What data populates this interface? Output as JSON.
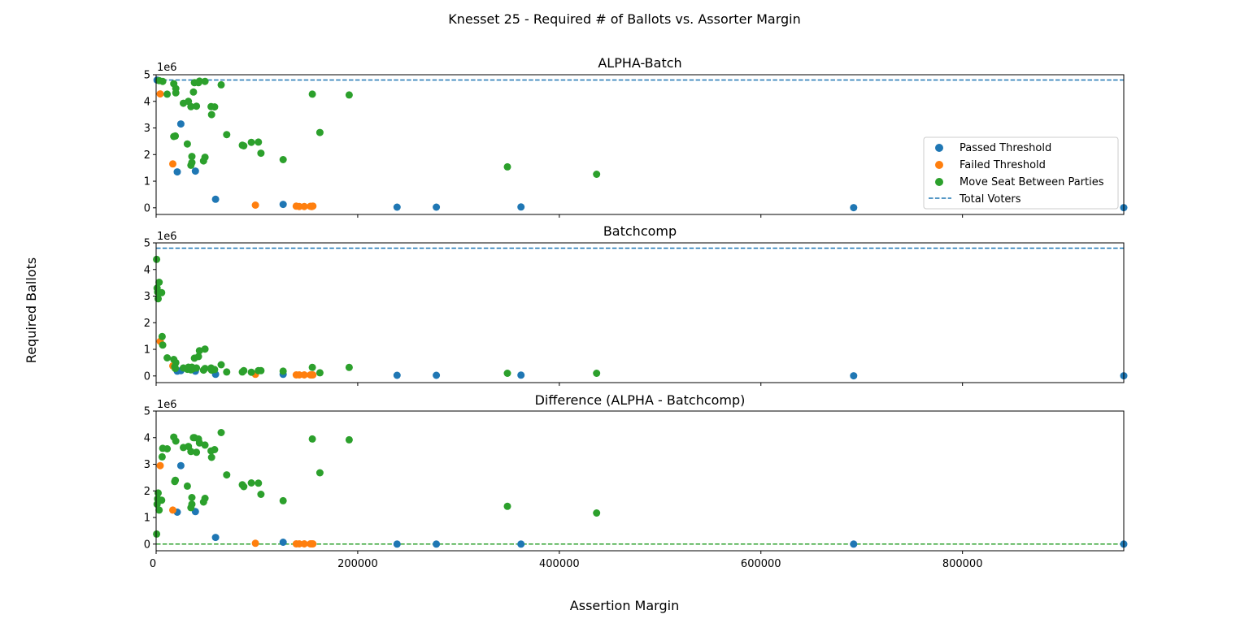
{
  "figure": {
    "suptitle": "Knesset 25 - Required # of Ballots vs. Assorter Margin",
    "xlabel": "Assertion Margin",
    "ylabel": "Required Ballots",
    "offset_label": "1e6"
  },
  "colors": {
    "passed": "#1f77b4",
    "failed": "#ff7f0e",
    "move": "#2ca02c",
    "total_line": "#1f77b4",
    "zero_line": "#2ca02c"
  },
  "legend": {
    "location": "center-right",
    "entries": [
      "Passed Threshold",
      "Failed Threshold",
      "Move Seat Between Parties",
      "Total Voters"
    ]
  },
  "chart_data": [
    {
      "type": "scatter",
      "title": "ALPHA-Batch",
      "xlim": [
        0,
        960000
      ],
      "ylim": [
        -250000,
        5000000
      ],
      "y_ticks": [
        "0",
        "1",
        "2",
        "3",
        "4",
        "5"
      ],
      "x_tick_values": [
        0,
        200000,
        400000,
        600000,
        800000
      ],
      "show_x_tick_labels": false,
      "reference_line": {
        "name": "Total Voters",
        "y": 4800000,
        "style": "dashed"
      },
      "series": [
        {
          "name": "Passed Threshold",
          "points": [
            [
              1000,
              4800000
            ],
            [
              21000,
              1350000
            ],
            [
              24500,
              3150000
            ],
            [
              39000,
              1380000
            ],
            [
              59000,
              320000
            ],
            [
              126000,
              130000
            ],
            [
              239000,
              25000
            ],
            [
              278000,
              25000
            ],
            [
              362000,
              30000
            ],
            [
              692000,
              5000
            ],
            [
              960000,
              5000
            ]
          ]
        },
        {
          "name": "Failed Threshold",
          "points": [
            [
              4000,
              4280000
            ],
            [
              16500,
              1650000
            ],
            [
              98500,
              100000
            ],
            [
              139000,
              60000
            ],
            [
              142000,
              50000
            ],
            [
              147000,
              50000
            ],
            [
              153000,
              55000
            ],
            [
              154500,
              50000
            ],
            [
              155500,
              65000
            ]
          ]
        },
        {
          "name": "Move Seat Between Parties",
          "points": [
            [
              3000,
              4780000
            ],
            [
              6500,
              4750000
            ],
            [
              11000,
              4270000
            ],
            [
              17500,
              4660000
            ],
            [
              19500,
              4320000
            ],
            [
              19500,
              4480000
            ],
            [
              17500,
              2680000
            ],
            [
              19000,
              2700000
            ],
            [
              27000,
              3930000
            ],
            [
              31000,
              2400000
            ],
            [
              32000,
              4000000
            ],
            [
              34500,
              1600000
            ],
            [
              35500,
              1930000
            ],
            [
              35500,
              1700000
            ],
            [
              34500,
              3800000
            ],
            [
              37000,
              4350000
            ],
            [
              38000,
              4700000
            ],
            [
              40000,
              3820000
            ],
            [
              42000,
              4700000
            ],
            [
              43000,
              4760000
            ],
            [
              47000,
              1760000
            ],
            [
              48500,
              1900000
            ],
            [
              48500,
              4750000
            ],
            [
              54500,
              3800000
            ],
            [
              55000,
              3500000
            ],
            [
              58000,
              3790000
            ],
            [
              64500,
              4620000
            ],
            [
              70000,
              2750000
            ],
            [
              85500,
              2350000
            ],
            [
              87000,
              2330000
            ],
            [
              94500,
              2460000
            ],
            [
              101500,
              2470000
            ],
            [
              104000,
              2050000
            ],
            [
              126000,
              1810000
            ],
            [
              155000,
              4270000
            ],
            [
              162500,
              2830000
            ],
            [
              191500,
              4240000
            ],
            [
              348500,
              1540000
            ],
            [
              437000,
              1260000
            ]
          ]
        }
      ]
    },
    {
      "type": "scatter",
      "title": "Batchcomp",
      "xlim": [
        0,
        960000
      ],
      "ylim": [
        -250000,
        5000000
      ],
      "y_ticks": [
        "0",
        "1",
        "2",
        "3",
        "4",
        "5"
      ],
      "x_tick_values": [
        0,
        200000,
        400000,
        600000,
        800000
      ],
      "show_x_tick_labels": false,
      "reference_line": {
        "name": "Total Voters",
        "y": 4800000,
        "style": "dashed"
      },
      "series": [
        {
          "name": "Passed Threshold",
          "points": [
            [
              21000,
              180000
            ],
            [
              24500,
              200000
            ],
            [
              39000,
              180000
            ],
            [
              59000,
              60000
            ],
            [
              126000,
              60000
            ],
            [
              239000,
              25000
            ],
            [
              278000,
              25000
            ],
            [
              362000,
              30000
            ],
            [
              692000,
              5000
            ],
            [
              960000,
              5000
            ]
          ]
        },
        {
          "name": "Failed Threshold",
          "points": [
            [
              4000,
              1300000
            ],
            [
              16500,
              380000
            ],
            [
              98500,
              60000
            ],
            [
              139000,
              40000
            ],
            [
              142000,
              40000
            ],
            [
              147000,
              40000
            ],
            [
              153000,
              40000
            ],
            [
              154500,
              40000
            ],
            [
              155500,
              40000
            ]
          ]
        },
        {
          "name": "Move Seat Between Parties",
          "points": [
            [
              500,
              4380000
            ],
            [
              1000,
              3300000
            ],
            [
              1500,
              3150000
            ],
            [
              2000,
              2900000
            ],
            [
              3000,
              3520000
            ],
            [
              5500,
              3130000
            ],
            [
              6000,
              1480000
            ],
            [
              6500,
              1160000
            ],
            [
              11000,
              680000
            ],
            [
              17500,
              620000
            ],
            [
              19500,
              500000
            ],
            [
              18500,
              350000
            ],
            [
              19000,
              280000
            ],
            [
              27000,
              300000
            ],
            [
              31000,
              250000
            ],
            [
              32000,
              330000
            ],
            [
              34500,
              230000
            ],
            [
              35500,
              330000
            ],
            [
              37000,
              280000
            ],
            [
              38000,
              670000
            ],
            [
              40000,
              300000
            ],
            [
              42000,
              730000
            ],
            [
              43000,
              950000
            ],
            [
              47000,
              220000
            ],
            [
              48500,
              1010000
            ],
            [
              48500,
              280000
            ],
            [
              54500,
              300000
            ],
            [
              55000,
              220000
            ],
            [
              58000,
              240000
            ],
            [
              64500,
              420000
            ],
            [
              70000,
              150000
            ],
            [
              85500,
              150000
            ],
            [
              87000,
              200000
            ],
            [
              94500,
              140000
            ],
            [
              101500,
              200000
            ],
            [
              104000,
              200000
            ],
            [
              126000,
              180000
            ],
            [
              155000,
              320000
            ],
            [
              162500,
              120000
            ],
            [
              191500,
              320000
            ],
            [
              348500,
              100000
            ],
            [
              437000,
              100000
            ]
          ]
        }
      ]
    },
    {
      "type": "scatter",
      "title": "Difference (ALPHA - Batchcomp)",
      "xlim": [
        0,
        960000
      ],
      "ylim": [
        -250000,
        5000000
      ],
      "y_ticks": [
        "0",
        "1",
        "2",
        "3",
        "4",
        "5"
      ],
      "x_tick_values": [
        0,
        200000,
        400000,
        600000,
        800000
      ],
      "x_tick_labels": [
        "0",
        "200000",
        "400000",
        "600000",
        "800000"
      ],
      "show_x_tick_labels": true,
      "reference_line": {
        "name": "zero",
        "y": 0,
        "style": "dashed"
      },
      "series": [
        {
          "name": "Passed Threshold",
          "points": [
            [
              21000,
              1200000
            ],
            [
              24500,
              2950000
            ],
            [
              39000,
              1220000
            ],
            [
              59000,
              250000
            ],
            [
              126000,
              70000
            ],
            [
              239000,
              0
            ],
            [
              278000,
              0
            ],
            [
              362000,
              0
            ],
            [
              692000,
              0
            ],
            [
              960000,
              0
            ]
          ]
        },
        {
          "name": "Failed Threshold",
          "points": [
            [
              4000,
              2950000
            ],
            [
              16500,
              1280000
            ],
            [
              98500,
              30000
            ],
            [
              139000,
              10000
            ],
            [
              142000,
              10000
            ],
            [
              147000,
              10000
            ],
            [
              153000,
              10000
            ],
            [
              154500,
              10000
            ],
            [
              155500,
              10000
            ]
          ]
        },
        {
          "name": "Move Seat Between Parties",
          "points": [
            [
              500,
              380000
            ],
            [
              1000,
              1500000
            ],
            [
              1500,
              1700000
            ],
            [
              2000,
              1920000
            ],
            [
              3000,
              1280000
            ],
            [
              5500,
              1650000
            ],
            [
              6000,
              3280000
            ],
            [
              6500,
              3600000
            ],
            [
              11000,
              3580000
            ],
            [
              17500,
              4020000
            ],
            [
              19500,
              3870000
            ],
            [
              18500,
              2350000
            ],
            [
              19000,
              2400000
            ],
            [
              27000,
              3630000
            ],
            [
              31000,
              2180000
            ],
            [
              32000,
              3670000
            ],
            [
              34500,
              1370000
            ],
            [
              35500,
              1500000
            ],
            [
              35500,
              1750000
            ],
            [
              34500,
              3480000
            ],
            [
              37000,
              4000000
            ],
            [
              38000,
              4000000
            ],
            [
              40000,
              3450000
            ],
            [
              42000,
              3950000
            ],
            [
              43000,
              3800000
            ],
            [
              47000,
              1580000
            ],
            [
              48500,
              1720000
            ],
            [
              48500,
              3720000
            ],
            [
              54500,
              3500000
            ],
            [
              55000,
              3260000
            ],
            [
              58000,
              3550000
            ],
            [
              64500,
              4190000
            ],
            [
              70000,
              2600000
            ],
            [
              85500,
              2230000
            ],
            [
              87000,
              2160000
            ],
            [
              94500,
              2300000
            ],
            [
              101500,
              2290000
            ],
            [
              104000,
              1870000
            ],
            [
              126000,
              1630000
            ],
            [
              155000,
              3950000
            ],
            [
              162500,
              2680000
            ],
            [
              191500,
              3920000
            ],
            [
              348500,
              1420000
            ],
            [
              437000,
              1170000
            ]
          ]
        }
      ]
    }
  ]
}
